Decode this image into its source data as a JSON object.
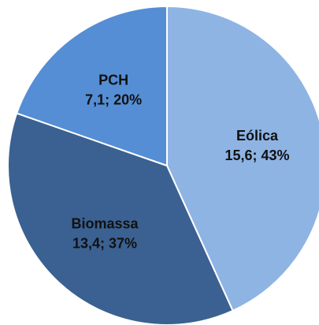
{
  "chart_data": {
    "type": "pie",
    "categories": [
      "Eólica",
      "Biomassa",
      "PCH"
    ],
    "values": [
      15.6,
      13.4,
      7.1
    ],
    "value_labels": [
      "15,6; 43%",
      "13,4; 37%",
      "7,1; 20%"
    ],
    "colors": [
      "#8eb4e3",
      "#3a6191",
      "#558ed5"
    ]
  }
}
